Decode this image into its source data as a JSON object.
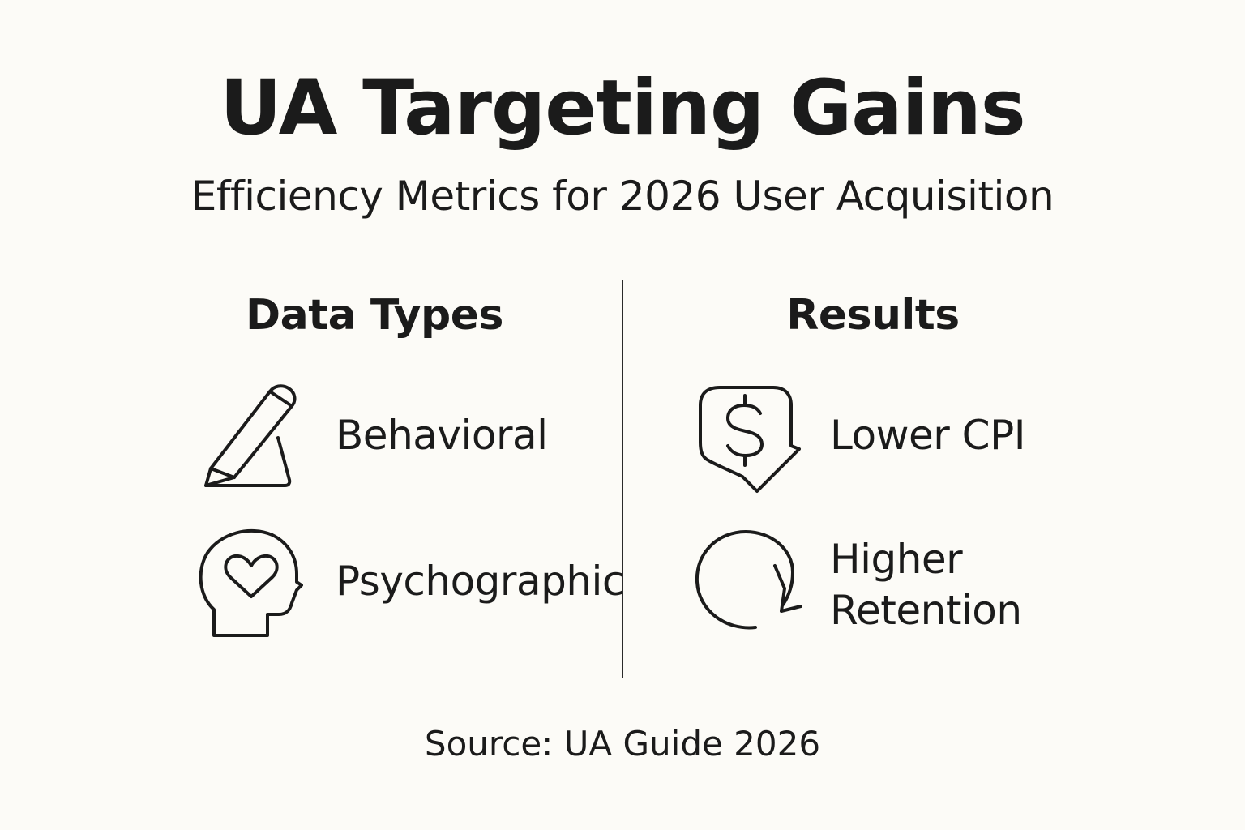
{
  "title": "UA Targeting Gains",
  "subtitle": "Efficiency Metrics for 2026 User Acquisition",
  "left_column": {
    "heading": "Data Types",
    "items": [
      {
        "icon": "pencil-icon",
        "label": "Behavioral"
      },
      {
        "icon": "head-heart-icon",
        "label": "Psychographic"
      }
    ]
  },
  "right_column": {
    "heading": "Results",
    "items": [
      {
        "icon": "dollar-bubble-icon",
        "label": "Lower CPI"
      },
      {
        "icon": "cycle-arrow-icon",
        "label_line1": "Higher",
        "label_line2": "Retention"
      }
    ]
  },
  "source": "Source: UA Guide 2026"
}
